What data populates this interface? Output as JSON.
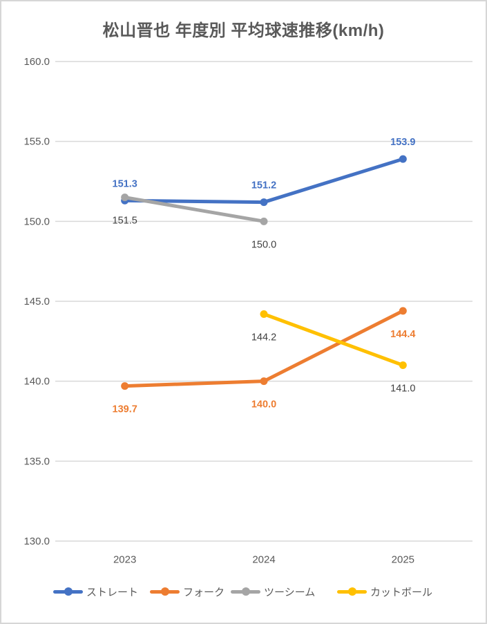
{
  "title": "松山晋也 年度別 平均球速推移(km/h)",
  "chart_data": {
    "type": "line",
    "title": "松山晋也 年度別 平均球速推移(km/h)",
    "categories": [
      "2023",
      "2024",
      "2025"
    ],
    "series": [
      {
        "key": "straight",
        "name": "ストレート",
        "color": "#4472C4",
        "values": [
          151.3,
          151.2,
          153.9
        ],
        "label_color": "#4472C4",
        "label_bold": true,
        "label_position": "above"
      },
      {
        "key": "fork",
        "name": "フォーク",
        "color": "#ED7D31",
        "values": [
          139.7,
          140.0,
          144.4
        ],
        "label_color": "#ED7D31",
        "label_bold": true,
        "label_position": "below"
      },
      {
        "key": "two-seam",
        "name": "ツーシーム",
        "color": "#A5A5A5",
        "values": [
          151.5,
          150.0,
          null
        ],
        "label_color": "#404040",
        "label_bold": false,
        "label_position": "below"
      },
      {
        "key": "cut-ball",
        "name": "カットボール",
        "color": "#FFC000",
        "values": [
          null,
          144.2,
          141.0
        ],
        "label_color": "#404040",
        "label_bold": false,
        "label_position": "below"
      }
    ],
    "ylim": [
      130,
      160
    ],
    "ytick_step": 5,
    "ytick_labels": [
      "160.0",
      "155.0",
      "150.0",
      "145.0",
      "140.0",
      "135.0",
      "130.0"
    ],
    "grid": true,
    "gridline_color": "#D9D9D9",
    "axis_label_color": "#595959",
    "legend_position": "bottom"
  },
  "colors": {
    "background": "#FFFFFF",
    "frame_border": "#D6D6D6",
    "title_text": "#595959"
  }
}
